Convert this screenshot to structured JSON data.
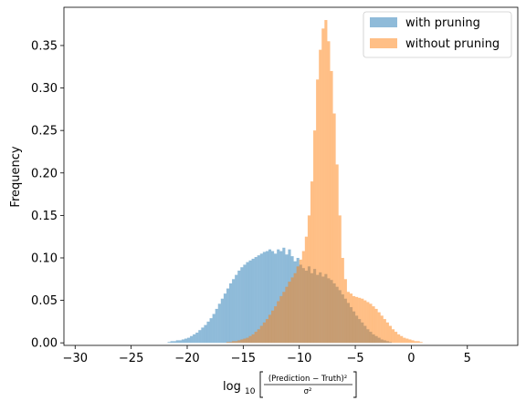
{
  "chart_data": {
    "type": "bar",
    "xlabel_main": "log",
    "xlabel_sub": "10",
    "xlabel_numerator": "(Prediction − Truth)²",
    "xlabel_denominator": "σ²",
    "ylabel": "Frequency",
    "xlim": [
      -31,
      9.5
    ],
    "ylim": [
      -0.003,
      0.395
    ],
    "xticks": [
      -30,
      -25,
      -20,
      -15,
      -10,
      -5,
      0,
      5
    ],
    "xtick_labels": [
      "−30",
      "−25",
      "−20",
      "−15",
      "−10",
      "−5",
      "0",
      "5"
    ],
    "yticks": [
      0.0,
      0.05,
      0.1,
      0.15,
      0.2,
      0.25,
      0.3,
      0.35
    ],
    "ytick_labels": [
      "0.00",
      "0.05",
      "0.10",
      "0.15",
      "0.20",
      "0.25",
      "0.30",
      "0.35"
    ],
    "legend_position": "top-right",
    "bin_width": 0.25,
    "series": [
      {
        "name": "with pruning",
        "color": "#1f77b4",
        "alpha": 0.5,
        "x_start": -21.75,
        "values": [
          0.001,
          0.002,
          0.002,
          0.003,
          0.003,
          0.004,
          0.005,
          0.006,
          0.008,
          0.01,
          0.012,
          0.015,
          0.018,
          0.021,
          0.025,
          0.029,
          0.034,
          0.04,
          0.046,
          0.052,
          0.058,
          0.064,
          0.07,
          0.075,
          0.08,
          0.085,
          0.089,
          0.092,
          0.095,
          0.097,
          0.099,
          0.101,
          0.103,
          0.105,
          0.107,
          0.108,
          0.11,
          0.108,
          0.105,
          0.11,
          0.108,
          0.112,
          0.104,
          0.11,
          0.102,
          0.096,
          0.1,
          0.092,
          0.088,
          0.085,
          0.09,
          0.082,
          0.087,
          0.08,
          0.083,
          0.078,
          0.081,
          0.076,
          0.074,
          0.07,
          0.066,
          0.062,
          0.057,
          0.052,
          0.047,
          0.042,
          0.037,
          0.032,
          0.028,
          0.024,
          0.02,
          0.016,
          0.013,
          0.01,
          0.008,
          0.006,
          0.004,
          0.003,
          0.002,
          0.001
        ]
      },
      {
        "name": "without pruning",
        "color": "#ff7f0e",
        "alpha": 0.5,
        "x_start": -16.5,
        "values": [
          0.001,
          0.001,
          0.002,
          0.002,
          0.003,
          0.004,
          0.005,
          0.006,
          0.008,
          0.01,
          0.013,
          0.016,
          0.02,
          0.024,
          0.028,
          0.033,
          0.038,
          0.043,
          0.049,
          0.055,
          0.06,
          0.066,
          0.072,
          0.077,
          0.082,
          0.09,
          0.098,
          0.108,
          0.125,
          0.15,
          0.19,
          0.25,
          0.31,
          0.345,
          0.37,
          0.38,
          0.355,
          0.32,
          0.27,
          0.21,
          0.15,
          0.1,
          0.075,
          0.06,
          0.058,
          0.055,
          0.054,
          0.053,
          0.052,
          0.05,
          0.048,
          0.046,
          0.043,
          0.04,
          0.036,
          0.032,
          0.028,
          0.024,
          0.02,
          0.016,
          0.013,
          0.01,
          0.008,
          0.006,
          0.005,
          0.004,
          0.003,
          0.002,
          0.002,
          0.001
        ]
      }
    ]
  }
}
